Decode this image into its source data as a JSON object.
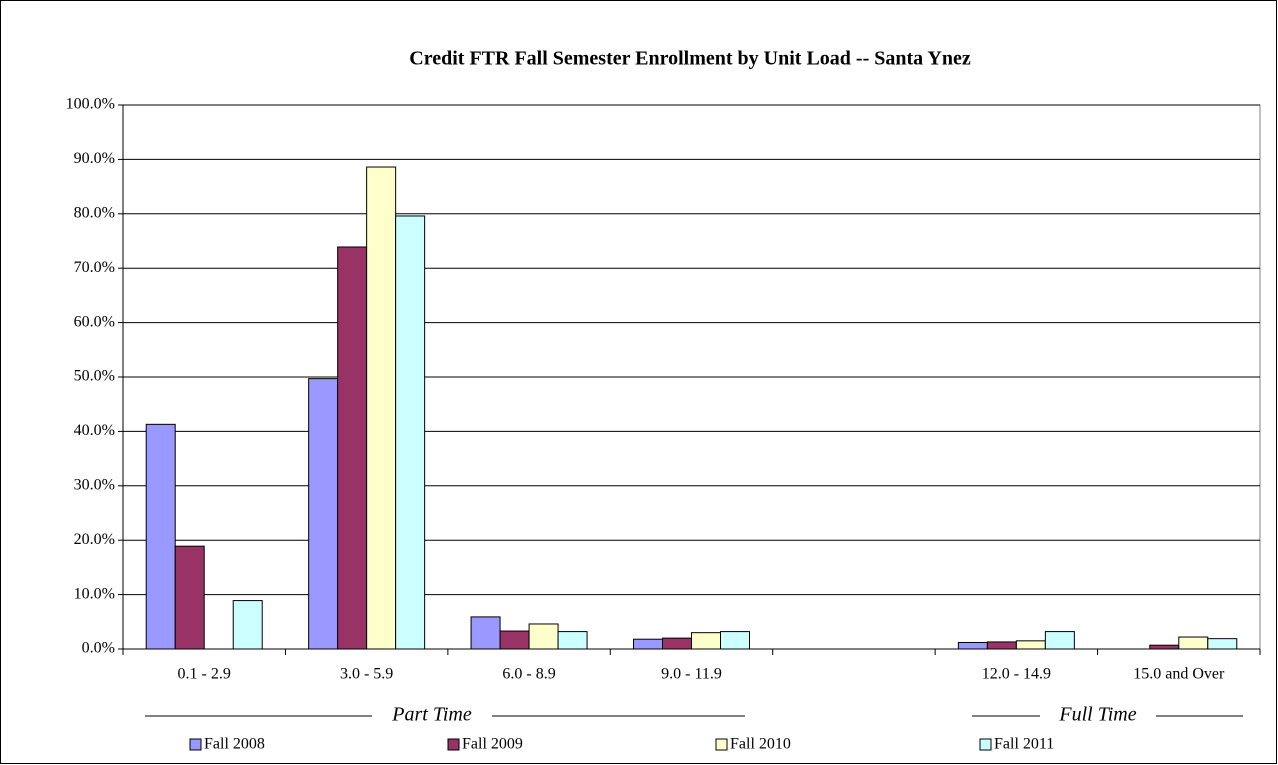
{
  "chart_data": {
    "type": "bar",
    "title": "Credit FTR Fall Semester Enrollment by Unit Load -- Santa Ynez",
    "categories": [
      "0.1 - 2.9",
      "3.0 - 5.9",
      "6.0 - 8.9",
      "9.0 - 11.9",
      null,
      "12.0 - 14.9",
      "15.0 and Over"
    ],
    "series": [
      {
        "name": "Fall 2008",
        "color": "#9999ff",
        "values": [
          41.3,
          49.7,
          5.9,
          1.8,
          null,
          1.2,
          null
        ]
      },
      {
        "name": "Fall 2009",
        "color": "#993366",
        "values": [
          18.9,
          73.9,
          3.3,
          2.0,
          null,
          1.3,
          0.7
        ]
      },
      {
        "name": "Fall 2010",
        "color": "#ffffcc",
        "values": [
          null,
          88.6,
          4.6,
          3.0,
          null,
          1.5,
          2.2
        ]
      },
      {
        "name": "Fall 2011",
        "color": "#ccffff",
        "values": [
          8.9,
          79.6,
          3.2,
          3.2,
          null,
          3.2,
          1.9
        ]
      }
    ],
    "annotations": [
      "Part Time",
      "Full Time"
    ],
    "ylim": [
      0,
      100
    ],
    "yticks": [
      {
        "value": 0,
        "label": "0.0%"
      },
      {
        "value": 10,
        "label": "10.0%"
      },
      {
        "value": 20,
        "label": "20.0%"
      },
      {
        "value": 30,
        "label": "30.0%"
      },
      {
        "value": 40,
        "label": "40.0%"
      },
      {
        "value": 50,
        "label": "50.0%"
      },
      {
        "value": 60,
        "label": "60.0%"
      },
      {
        "value": 70,
        "label": "70.0%"
      },
      {
        "value": 80,
        "label": "80.0%"
      },
      {
        "value": 90,
        "label": "90.0%"
      },
      {
        "value": 100,
        "label": "100.0%"
      }
    ],
    "grid": true,
    "legend": "bottom"
  }
}
